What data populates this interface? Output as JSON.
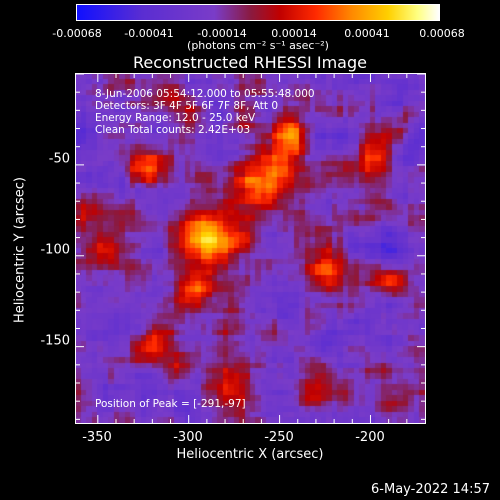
{
  "colorbar": {
    "ticks": [
      "-0.00068",
      "-0.00041",
      "-0.00014",
      "0.00014",
      "0.00041",
      "0.00068"
    ],
    "units": "(photons cm⁻² s⁻¹ asec⁻²)",
    "colors": [
      "#1010ff",
      "#5a2dd2",
      "#7a3cc8",
      "#8a1a40",
      "#c00000",
      "#ff2a00",
      "#ff8a00",
      "#ffd000",
      "#ffff80",
      "#ffffff"
    ]
  },
  "title": "Reconstructed RHESSI Image",
  "info": {
    "time_range": "8-Jun-2006 05:54:12.000 to 05:55:48.000",
    "detectors": "Detectors: 3F 4F 5F 6F 7F 8F, Att 0",
    "energy": "Energy Range: 12.0 - 25.0 keV",
    "clean": "Clean     Total counts: 2.42E+03",
    "peak": "Position of Peak = [-291,-97]"
  },
  "footer": "6-May-2022 14:57",
  "chart_data": {
    "type": "heatmap",
    "title": "Reconstructed RHESSI Image",
    "xlabel": "Heliocentric X (arcsec)",
    "ylabel": "Heliocentric Y (arcsec)",
    "xlim": [
      -362,
      -170
    ],
    "ylim": [
      -192,
      0
    ],
    "xticks": [
      -350,
      -300,
      -250,
      -200
    ],
    "yticks": [
      -50,
      -100,
      -150
    ],
    "xtick_labels": [
      "-350",
      "-300",
      "-250",
      "-200"
    ],
    "ytick_labels": [
      "-50",
      "-100",
      "-150"
    ],
    "colorbar_range": [
      -0.00068,
      0.00068
    ],
    "peak_position": [
      -291,
      -97
    ],
    "grid": "none"
  }
}
